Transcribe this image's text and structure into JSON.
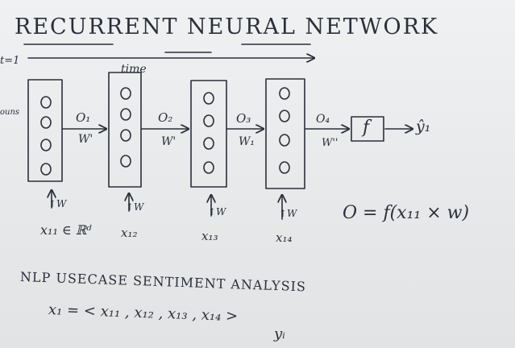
{
  "title": "RECURRENT NEURAL NETWORK",
  "time_start": "t=1",
  "time_label": "time",
  "edge_left_label": "ouns",
  "outputs": [
    "O₁",
    "O₂",
    "O₃",
    "O₄"
  ],
  "weights": [
    "W'",
    "W'",
    "W₁",
    "W''"
  ],
  "input_weight": "↑W",
  "inputs": [
    "x₁₁ ∈ ℝᵈ",
    "x₁₂",
    "x₁₃",
    "x₁₄"
  ],
  "activation": "f",
  "prediction": "ŷ₁",
  "formula": "O = f(x₁₁ × w)",
  "usecase": "NLP USECASE  SENTIMENT ANALYSIS",
  "sequence": "x₁ = < x₁₁ , x₁₂ , x₁₃ , x₁₄ >",
  "target": "yᵢ"
}
